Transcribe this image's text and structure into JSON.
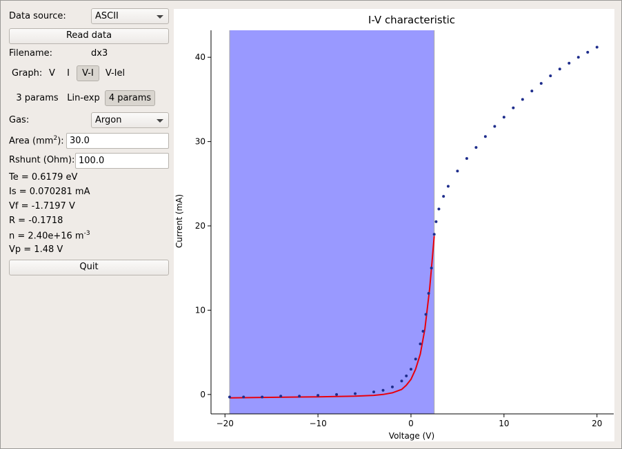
{
  "panel": {
    "data_source_label": "Data source:",
    "data_source_value": "ASCII",
    "read_button": "Read data",
    "filename_label": "Filename:",
    "filename_value": "dx3",
    "graph_label": "Graph:",
    "graph_options": [
      "V",
      "I",
      "V-I",
      "V-Iel"
    ],
    "graph_selected": "V-I",
    "fit_options": [
      "3 params",
      "Lin-exp",
      "4 params"
    ],
    "fit_selected": "4 params",
    "gas_label": "Gas:",
    "gas_value": "Argon",
    "area_label_pre": "Area (mm",
    "area_label_sup": "2",
    "area_label_post": "):",
    "area_value": "30.0",
    "rshunt_label": "Rshunt (Ohm):",
    "rshunt_value": "100.0",
    "te": "Te = 0.6179 eV",
    "is": "Is = 0.070281 mA",
    "vf": "Vf = -1.7197 V",
    "r": "R = -0.1718",
    "n_pre": "n = 2.40e+16 m",
    "n_sup": "-3",
    "vp": "Vp = 1.48 V",
    "quit_button": "Quit"
  },
  "chart_data": {
    "type": "scatter",
    "title": "I-V characteristic",
    "xlabel": "Voltage (V)",
    "ylabel": "Current (mA)",
    "xlim": [
      -21.5,
      21.8
    ],
    "ylim": [
      -2.3,
      43.2
    ],
    "xticks": [
      -20,
      -10,
      0,
      10,
      20
    ],
    "yticks": [
      0,
      10,
      20,
      30,
      40
    ],
    "shaded_region": {
      "x0": -19.5,
      "x1": 2.5,
      "color": "#9999ff"
    },
    "series": [
      {
        "kind": "points",
        "color": "#1e2d8c",
        "x": [
          -19.5,
          -18,
          -16,
          -14,
          -12,
          -10,
          -8,
          -6,
          -4,
          -3,
          -2,
          -1,
          -0.5,
          0,
          0.5,
          1,
          1.3,
          1.6,
          1.9,
          2.2,
          2.5,
          2.7,
          3,
          3.5,
          4,
          5,
          6,
          7,
          8,
          9,
          10,
          11,
          12,
          13,
          14,
          15,
          16,
          17,
          18,
          19,
          20
        ],
        "y": [
          -0.3,
          -0.3,
          -0.3,
          -0.2,
          -0.2,
          -0.1,
          0.0,
          0.1,
          0.3,
          0.5,
          0.9,
          1.6,
          2.2,
          3.0,
          4.2,
          6.0,
          7.5,
          9.5,
          12.0,
          15.0,
          19.0,
          20.5,
          22.0,
          23.5,
          24.7,
          26.5,
          28.0,
          29.3,
          30.6,
          31.8,
          32.9,
          34.0,
          35.0,
          36.0,
          36.9,
          37.8,
          38.6,
          39.3,
          40.0,
          40.6,
          41.2
        ]
      },
      {
        "kind": "line",
        "color": "#e8000b",
        "x": [
          -19.5,
          -16,
          -12,
          -10,
          -8,
          -6,
          -4,
          -3,
          -2,
          -1,
          -0.5,
          0,
          0.5,
          1,
          1.5,
          2,
          2.3,
          2.5
        ],
        "y": [
          -0.4,
          -0.35,
          -0.3,
          -0.28,
          -0.24,
          -0.2,
          -0.1,
          0.0,
          0.2,
          0.6,
          1.1,
          1.8,
          3.0,
          4.8,
          7.8,
          12.5,
          16.2,
          18.8
        ]
      }
    ]
  }
}
